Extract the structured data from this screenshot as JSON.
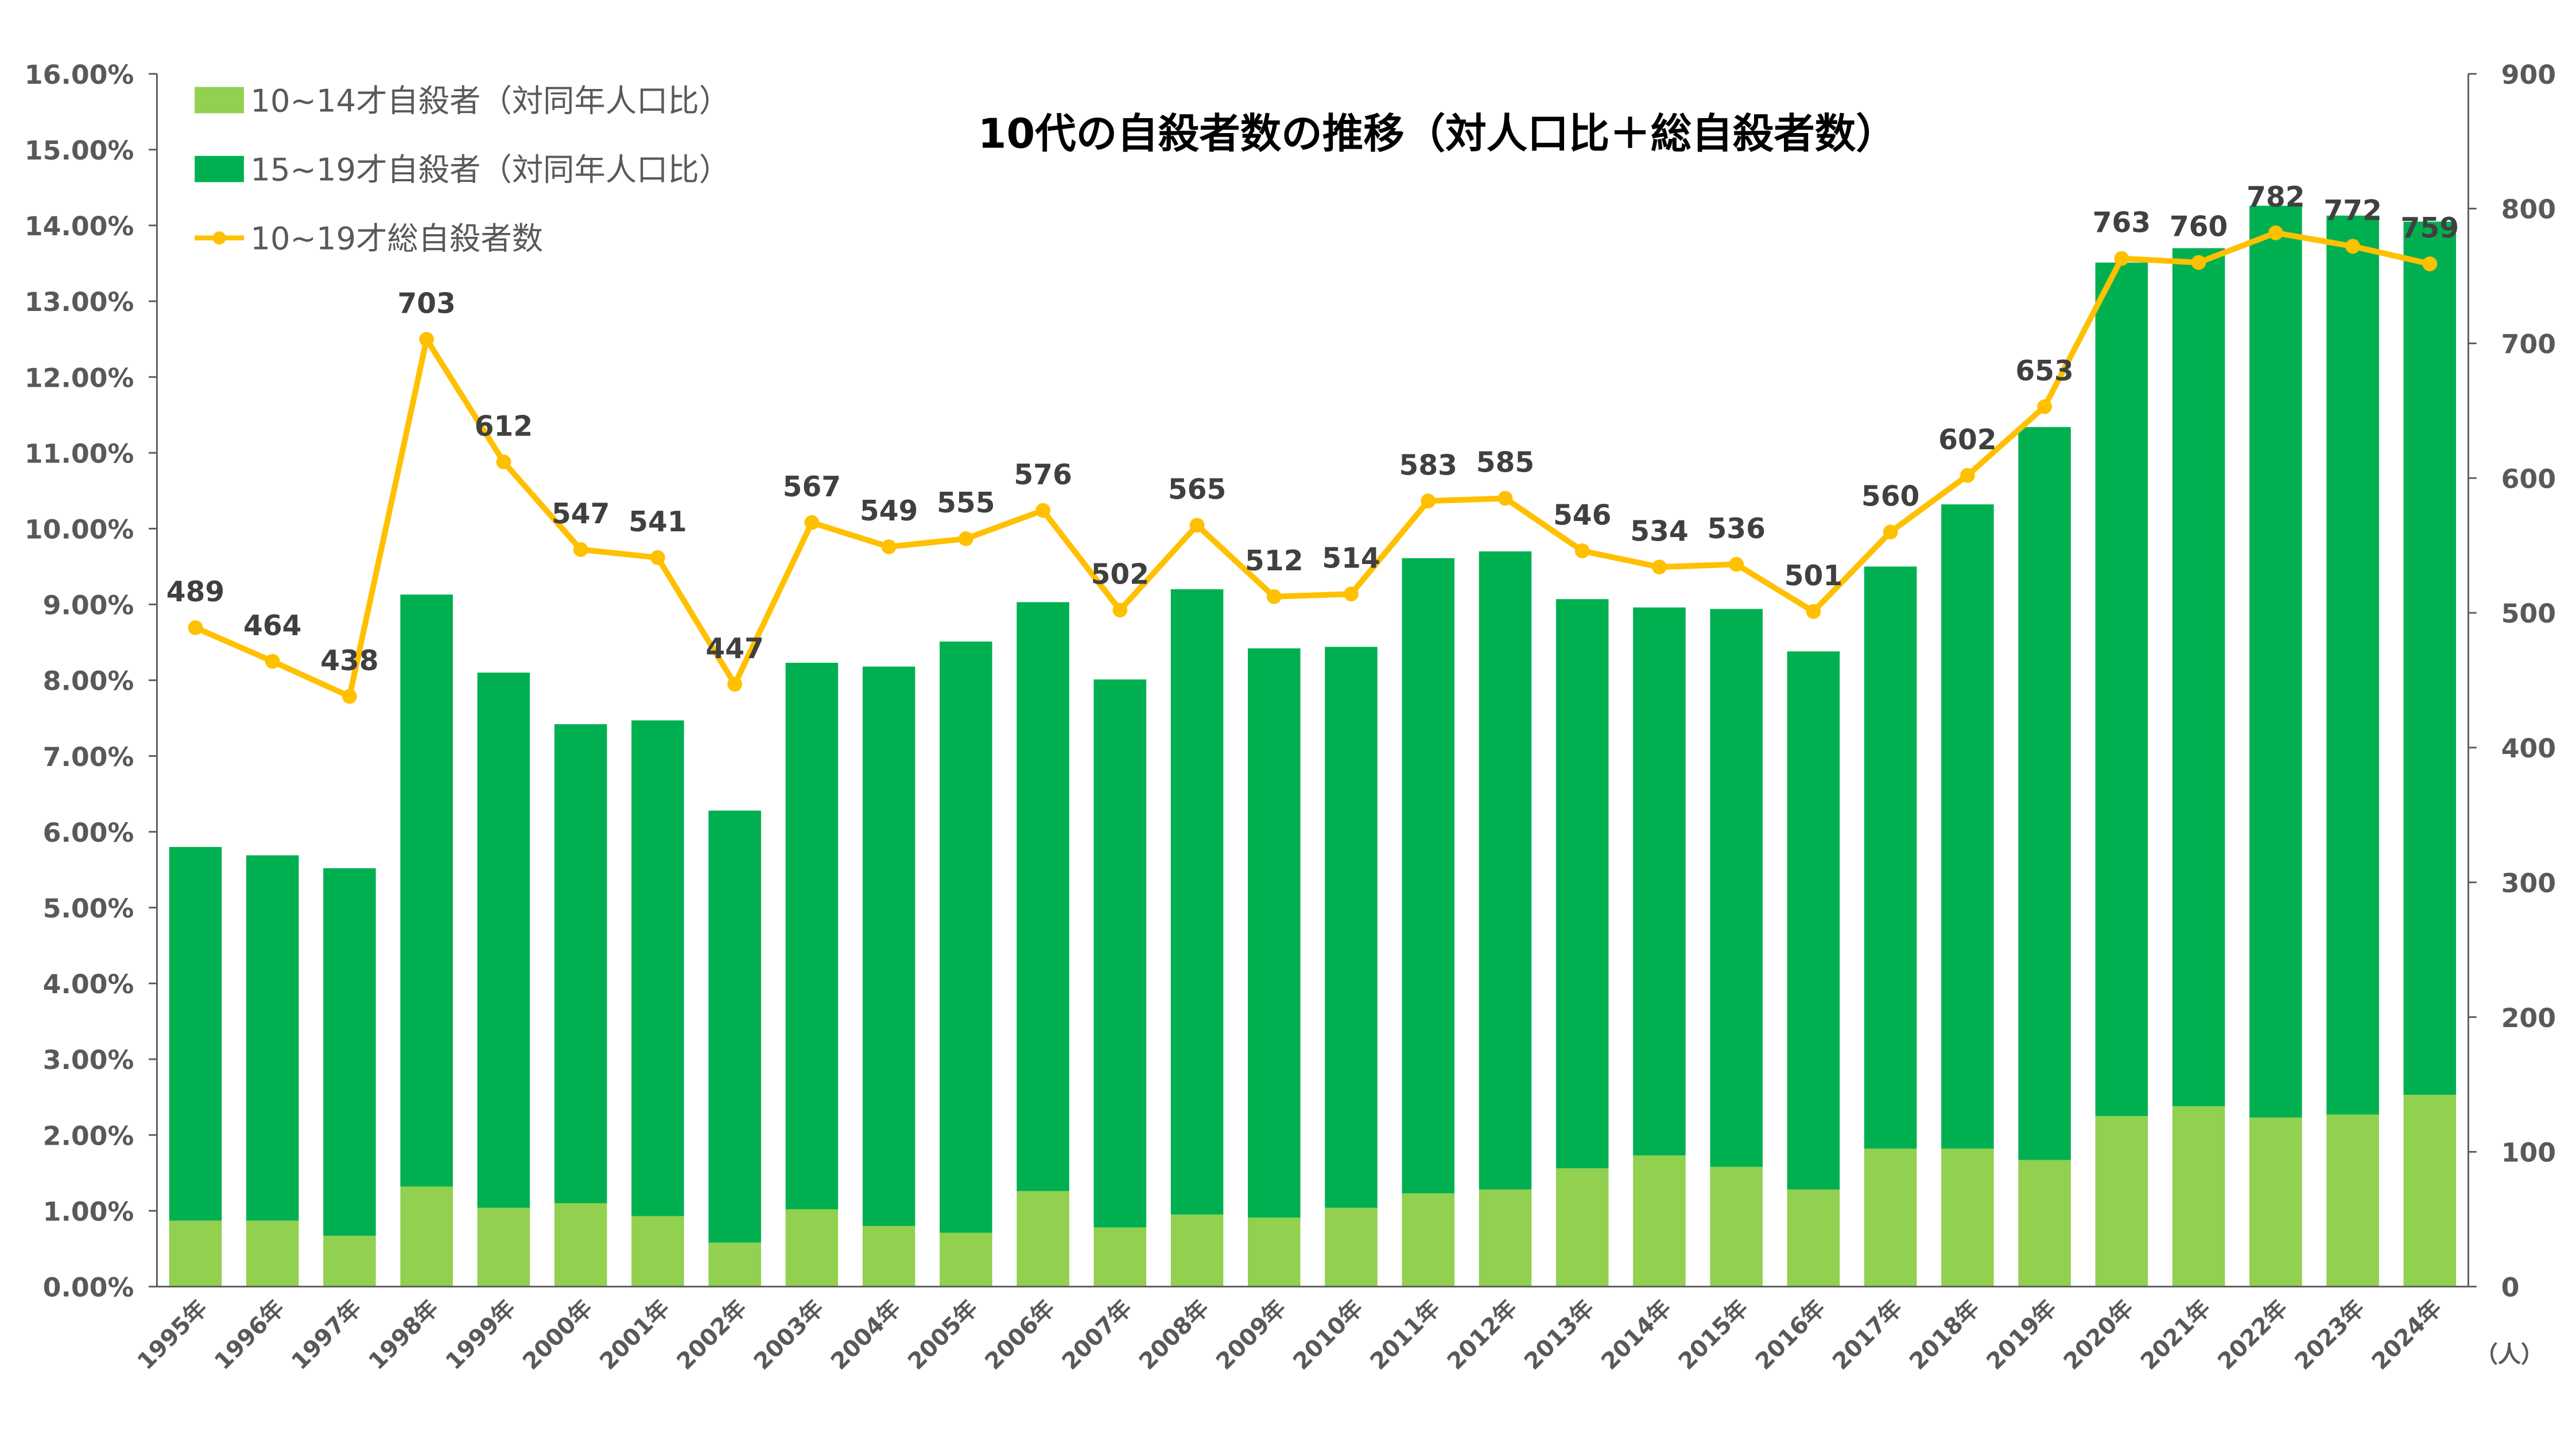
{
  "chart_data": {
    "type": "bar",
    "stacked": true,
    "title": "10代の自殺者数の推移（対人口比＋総自殺者数）",
    "categories": [
      "1995年",
      "1996年",
      "1997年",
      "1998年",
      "1999年",
      "2000年",
      "2001年",
      "2002年",
      "2003年",
      "2004年",
      "2005年",
      "2006年",
      "2007年",
      "2008年",
      "2009年",
      "2010年",
      "2011年",
      "2012年",
      "2013年",
      "2014年",
      "2015年",
      "2016年",
      "2017年",
      "2018年",
      "2019年",
      "2020年",
      "2021年",
      "2022年",
      "2023年",
      "2024年"
    ],
    "series": [
      {
        "name": "10~14才自殺者（対同年人口比）",
        "type": "bar",
        "axis": "left",
        "color": "#92D050",
        "values": [
          0.87,
          0.87,
          0.67,
          1.32,
          1.04,
          1.1,
          0.93,
          0.58,
          1.02,
          0.8,
          0.71,
          1.26,
          0.78,
          0.95,
          0.91,
          1.04,
          1.23,
          1.28,
          1.56,
          1.73,
          1.58,
          1.28,
          1.82,
          1.82,
          1.67,
          2.25,
          2.38,
          2.23,
          2.27,
          2.53
        ]
      },
      {
        "name": "15~19才自殺者（対同年人口比）",
        "type": "bar",
        "axis": "left",
        "color": "#00B050",
        "values": [
          4.93,
          4.82,
          4.85,
          7.81,
          7.06,
          6.32,
          6.54,
          5.7,
          7.21,
          7.38,
          7.8,
          7.77,
          7.23,
          8.25,
          7.51,
          7.4,
          8.38,
          8.42,
          7.51,
          7.23,
          7.36,
          7.1,
          7.68,
          8.5,
          9.67,
          11.26,
          11.32,
          12.03,
          11.86,
          11.52
        ]
      },
      {
        "name": "10~19才総自殺者数",
        "type": "line",
        "axis": "right",
        "color": "#FFC000",
        "values": [
          489,
          464,
          438,
          703,
          612,
          547,
          541,
          447,
          567,
          549,
          555,
          576,
          502,
          565,
          512,
          514,
          583,
          585,
          546,
          534,
          536,
          501,
          560,
          602,
          653,
          763,
          760,
          782,
          772,
          759
        ]
      }
    ],
    "y_left": {
      "range": [
        0,
        16
      ],
      "ticks": [
        "0.00%",
        "1.00%",
        "2.00%",
        "3.00%",
        "4.00%",
        "5.00%",
        "6.00%",
        "7.00%",
        "8.00%",
        "9.00%",
        "10.00%",
        "11.00%",
        "12.00%",
        "13.00%",
        "14.00%",
        "15.00%",
        "16.00%"
      ]
    },
    "y_right": {
      "range": [
        0,
        900
      ],
      "ticks": [
        "0",
        "100",
        "200",
        "300",
        "400",
        "500",
        "600",
        "700",
        "800",
        "900"
      ],
      "unit": "（人）"
    },
    "legend_position": "top-left",
    "grid": false
  }
}
